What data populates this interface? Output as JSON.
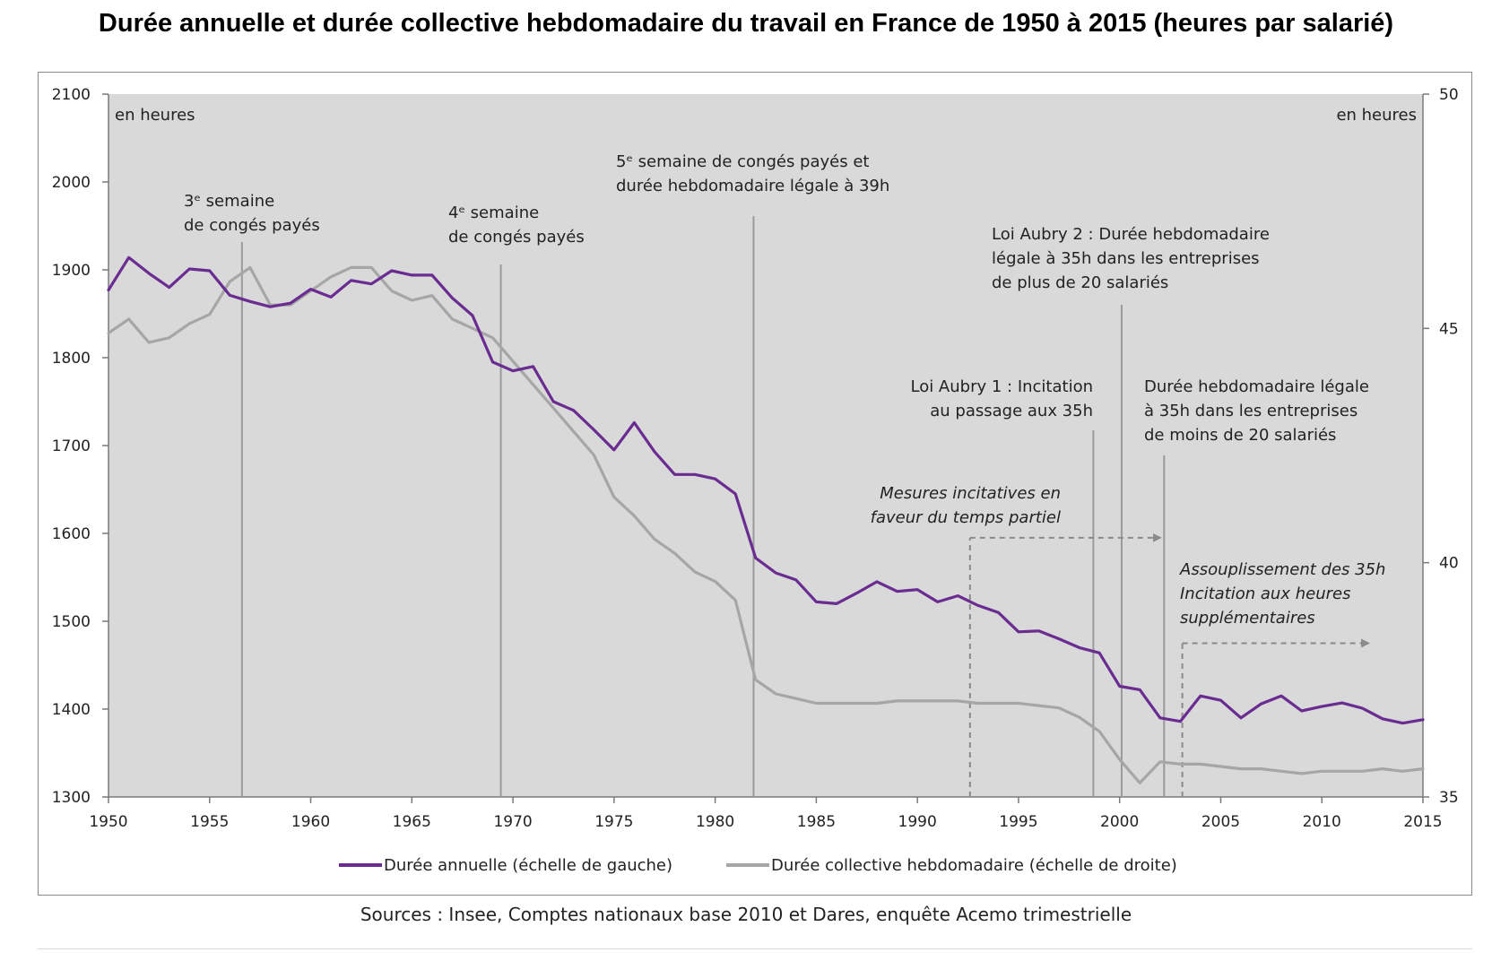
{
  "chart_data": {
    "type": "line",
    "title": "Durée annuelle et durée collective hebdomadaire du travail en France de 1950 à 2015 (heures par salarié)",
    "source": "Sources : Insee, Comptes nationaux base 2010 et Dares, enquête Acemo trimestrielle",
    "y_left_label": "en heures",
    "y_right_label": "en heures",
    "xlim": [
      1950,
      2015
    ],
    "ylim_left": [
      1300,
      2100
    ],
    "ylim_right": [
      35,
      50
    ],
    "x_ticks": [
      "1950",
      "1955",
      "1960",
      "1965",
      "1970",
      "1975",
      "1980",
      "1985",
      "1990",
      "1995",
      "2000",
      "2005",
      "2010",
      "2015"
    ],
    "y_left_ticks": [
      "1300",
      "1400",
      "1500",
      "1600",
      "1700",
      "1800",
      "1900",
      "2000",
      "2100"
    ],
    "y_right_ticks": [
      "35",
      "40",
      "45",
      "50"
    ],
    "colors": {
      "plot_bg": "#d9d9d9",
      "annual": "#6a2c91",
      "weekly": "#a6a6a6",
      "vline": "#9a9a9a"
    },
    "legend_position": "bottom",
    "series": [
      {
        "name": "Durée annuelle (échelle de gauche)",
        "axis": "left",
        "x": [
          1950,
          1951,
          1952,
          1953,
          1954,
          1955,
          1956,
          1957,
          1958,
          1959,
          1960,
          1961,
          1962,
          1963,
          1964,
          1965,
          1966,
          1967,
          1968,
          1969,
          1970,
          1971,
          1972,
          1973,
          1974,
          1975,
          1976,
          1977,
          1978,
          1979,
          1980,
          1981,
          1982,
          1983,
          1984,
          1985,
          1986,
          1987,
          1988,
          1989,
          1990,
          1991,
          1992,
          1993,
          1994,
          1995,
          1996,
          1997,
          1998,
          1999,
          2000,
          2001,
          2002,
          2003,
          2004,
          2005,
          2006,
          2007,
          2008,
          2009,
          2010,
          2011,
          2012,
          2013,
          2014,
          2015
        ],
        "values": [
          1877,
          1914,
          1896,
          1880,
          1901,
          1899,
          1871,
          1864,
          1858,
          1862,
          1878,
          1869,
          1888,
          1884,
          1899,
          1894,
          1894,
          1868,
          1848,
          1795,
          1785,
          1790,
          1750,
          1740,
          1718,
          1695,
          1726,
          1693,
          1667,
          1667,
          1662,
          1645,
          1572,
          1555,
          1547,
          1522,
          1520,
          1532,
          1545,
          1534,
          1536,
          1522,
          1529,
          1518,
          1510,
          1488,
          1489,
          1480,
          1470,
          1464,
          1426,
          1422,
          1390,
          1386,
          1415,
          1410,
          1390,
          1406,
          1415,
          1398,
          1403,
          1407,
          1401,
          1389,
          1384,
          1388
        ]
      },
      {
        "name": "Durée collective hebdomadaire (échelle de droite)",
        "axis": "right",
        "x": [
          1950,
          1951,
          1952,
          1953,
          1954,
          1955,
          1956,
          1957,
          1958,
          1959,
          1960,
          1961,
          1962,
          1963,
          1964,
          1965,
          1966,
          1967,
          1968,
          1969,
          1970,
          1971,
          1972,
          1973,
          1974,
          1975,
          1976,
          1977,
          1978,
          1979,
          1980,
          1981,
          1982,
          1983,
          1984,
          1985,
          1986,
          1987,
          1988,
          1989,
          1990,
          1991,
          1992,
          1993,
          1994,
          1995,
          1996,
          1997,
          1998,
          1999,
          2000,
          2001,
          2002,
          2003,
          2004,
          2005,
          2006,
          2007,
          2008,
          2009,
          2010,
          2011,
          2012,
          2013,
          2014,
          2015
        ],
        "values": [
          44.9,
          45.2,
          44.7,
          44.8,
          45.1,
          45.3,
          46.0,
          46.3,
          45.5,
          45.5,
          45.8,
          46.1,
          46.3,
          46.3,
          45.8,
          45.6,
          45.7,
          45.2,
          45.0,
          44.8,
          44.3,
          43.8,
          43.3,
          42.8,
          42.3,
          41.4,
          41.0,
          40.5,
          40.2,
          39.8,
          39.6,
          39.2,
          37.5,
          37.2,
          37.1,
          37.0,
          37.0,
          37.0,
          37.0,
          37.05,
          37.05,
          37.05,
          37.05,
          37.0,
          37.0,
          37.0,
          36.95,
          36.9,
          36.7,
          36.4,
          35.8,
          35.3,
          35.75,
          35.7,
          35.7,
          35.65,
          35.6,
          35.6,
          35.55,
          35.5,
          35.55,
          35.55,
          35.55,
          35.6,
          35.55,
          35.6
        ]
      }
    ],
    "vlines": [
      1956.6,
      1969.4,
      1981.9,
      1998.7,
      2000.1,
      2002.2
    ],
    "arrows": [
      {
        "from_x": 1992.6,
        "to_x": 2002.0,
        "y": 1595,
        "vline_from": 1300
      },
      {
        "from_x": 2003.1,
        "to_x": 2012.3,
        "y": 1475,
        "vline_from": 1300
      }
    ],
    "annotations": [
      {
        "lines": [
          "3ᵉ semaine",
          "de congés payés"
        ],
        "style": "normal"
      },
      {
        "lines": [
          "4ᵉ semaine",
          "de congés payés"
        ],
        "style": "normal"
      },
      {
        "lines": [
          "5ᵉ semaine de congés payés et",
          "durée hebdomadaire légale à 39h"
        ],
        "style": "normal"
      },
      {
        "lines": [
          "Loi Aubry 2 : Durée hebdomadaire",
          "légale à 35h dans les entreprises",
          "de plus de 20 salariés"
        ],
        "style": "normal"
      },
      {
        "lines": [
          "Loi Aubry 1 : Incitation",
          "au passage aux 35h"
        ],
        "style": "normal"
      },
      {
        "lines": [
          "Durée hebdomadaire légale",
          "à 35h dans les entreprises",
          "de moins de 20 salariés"
        ],
        "style": "normal"
      },
      {
        "lines": [
          "Mesures incitatives en",
          "faveur du temps partiel"
        ],
        "style": "italic"
      },
      {
        "lines": [
          "Assouplissement des 35h",
          "Incitation aux heures",
          "supplémentaires"
        ],
        "style": "italic"
      }
    ]
  }
}
